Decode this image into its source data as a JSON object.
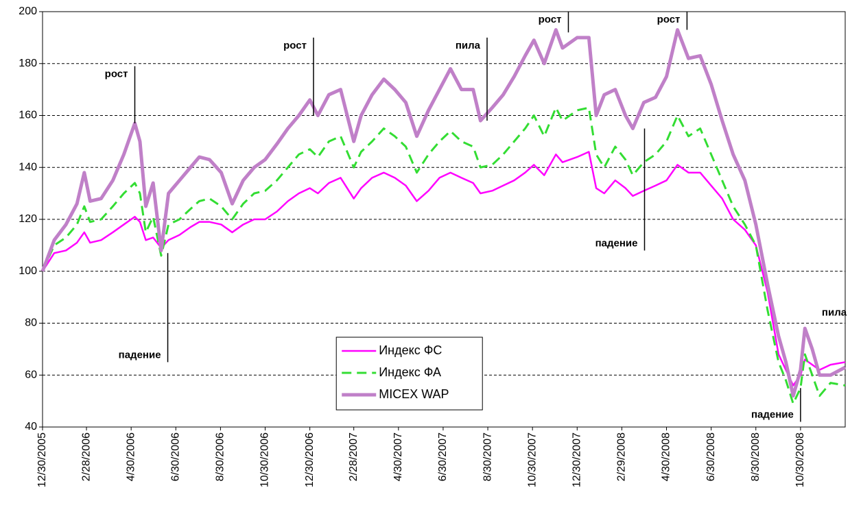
{
  "chart_data": {
    "type": "line",
    "x": [
      "12/30/2005",
      "1/15/2006",
      "1/31/2006",
      "2/15/2006",
      "2/25/2006",
      "3/5/2006",
      "3/20/2006",
      "4/5/2006",
      "4/20/2006",
      "5/5/2006",
      "5/12/2006",
      "5/20/2006",
      "5/30/2006",
      "6/10/2006",
      "6/20/2006",
      "7/5/2006",
      "7/20/2006",
      "8/1/2006",
      "8/15/2006",
      "8/31/2006",
      "9/15/2006",
      "9/30/2006",
      "10/15/2006",
      "10/30/2006",
      "11/15/2006",
      "11/30/2006",
      "12/15/2006",
      "12/30/2006",
      "1/10/2007",
      "1/25/2007",
      "2/10/2007",
      "2/28/2007",
      "3/10/2007",
      "3/25/2007",
      "4/10/2007",
      "4/25/2007",
      "5/10/2007",
      "5/25/2007",
      "6/10/2007",
      "6/25/2007",
      "7/10/2007",
      "7/25/2007",
      "8/10/2007",
      "8/20/2007",
      "9/5/2007",
      "9/20/2007",
      "10/5/2007",
      "10/20/2007",
      "11/1/2007",
      "11/15/2007",
      "12/1/2007",
      "12/10/2007",
      "12/30/2007",
      "1/15/2008",
      "1/25/2008",
      "2/5/2008",
      "2/20/2008",
      "3/5/2008",
      "3/15/2008",
      "3/30/2008",
      "4/15/2008",
      "4/30/2008",
      "5/15/2008",
      "5/30/2008",
      "6/15/2008",
      "6/30/2008",
      "7/15/2008",
      "7/30/2008",
      "8/15/2008",
      "8/30/2008",
      "9/15/2008",
      "9/30/2008",
      "10/10/2008",
      "10/20/2008",
      "10/30/2008",
      "11/5/2008",
      "11/15/2008",
      "11/25/2008",
      "12/10/2008",
      "12/30/2008"
    ],
    "series": [
      {
        "name": "Индекс ФС",
        "color": "#ff00ff",
        "dash": false,
        "width": 2.5,
        "values": [
          100,
          107,
          108,
          111,
          115,
          111,
          112,
          115,
          118,
          121,
          119,
          112,
          113,
          109,
          112,
          114,
          117,
          119,
          119,
          118,
          115,
          118,
          120,
          120,
          123,
          127,
          130,
          132,
          130,
          134,
          136,
          128,
          132,
          136,
          138,
          136,
          133,
          127,
          131,
          136,
          138,
          136,
          134,
          130,
          131,
          133,
          135,
          138,
          141,
          137,
          145,
          142,
          144,
          146,
          132,
          130,
          135,
          132,
          129,
          131,
          133,
          135,
          141,
          138,
          138,
          133,
          128,
          120,
          116,
          110,
          92,
          68,
          62,
          56,
          60,
          66,
          64,
          62,
          64,
          65
        ]
      },
      {
        "name": "Индекс ФА",
        "color": "#33dd33",
        "dash": true,
        "width": 3,
        "values": [
          100,
          110,
          113,
          118,
          125,
          119,
          120,
          125,
          130,
          134,
          130,
          115,
          121,
          106,
          118,
          120,
          124,
          127,
          128,
          125,
          120,
          126,
          130,
          131,
          135,
          140,
          145,
          147,
          144,
          150,
          152,
          140,
          146,
          150,
          155,
          152,
          148,
          138,
          145,
          150,
          154,
          150,
          148,
          140,
          141,
          145,
          150,
          155,
          160,
          152,
          163,
          158,
          162,
          163,
          145,
          140,
          148,
          143,
          137,
          142,
          145,
          150,
          160,
          152,
          155,
          145,
          135,
          125,
          118,
          110,
          85,
          65,
          58,
          49,
          55,
          68,
          60,
          52,
          57,
          56
        ]
      },
      {
        "name": "MICEX WAP",
        "color": "#c080c8",
        "dash": false,
        "width": 5,
        "values": [
          100,
          112,
          118,
          126,
          138,
          127,
          128,
          135,
          145,
          157,
          150,
          125,
          134,
          108,
          130,
          135,
          140,
          144,
          143,
          138,
          126,
          135,
          140,
          143,
          149,
          155,
          160,
          166,
          160,
          168,
          170,
          150,
          160,
          168,
          174,
          170,
          165,
          152,
          162,
          170,
          178,
          170,
          170,
          158,
          163,
          168,
          175,
          183,
          189,
          180,
          193,
          186,
          190,
          190,
          160,
          168,
          170,
          160,
          155,
          165,
          167,
          175,
          193,
          182,
          183,
          172,
          158,
          145,
          135,
          118,
          95,
          75,
          65,
          52,
          62,
          78,
          70,
          60,
          60,
          63
        ]
      }
    ],
    "xlim": [
      "12/30/2005",
      "12/30/2008"
    ],
    "xticks": [
      "12/30/2005",
      "2/28/2006",
      "4/30/2006",
      "6/30/2006",
      "8/30/2006",
      "10/30/2006",
      "12/30/2006",
      "2/28/2007",
      "4/30/2007",
      "6/30/2007",
      "8/30/2007",
      "10/30/2007",
      "12/30/2007",
      "2/29/2008",
      "4/30/2008",
      "6/30/2008",
      "8/30/2008",
      "10/30/2008"
    ],
    "ylim": [
      40,
      200
    ],
    "yticks": [
      40,
      60,
      80,
      100,
      120,
      140,
      160,
      180,
      200
    ],
    "grid": true,
    "legend": "lower center",
    "annotations": [
      {
        "text": "рост",
        "x": "5/5/2006",
        "y": [
          157,
          179
        ]
      },
      {
        "text": "падение",
        "x": "6/19/2006",
        "y": [
          107,
          65
        ]
      },
      {
        "text": "рост",
        "x": "1/4/2007",
        "y": [
          160,
          190
        ]
      },
      {
        "text": "пила",
        "x": "8/29/2007",
        "y": [
          158,
          190
        ]
      },
      {
        "text": "рост",
        "x": "12/18/2007",
        "y": [
          192,
          200
        ]
      },
      {
        "text": "падение",
        "x": "3/31/2008",
        "y": [
          155,
          108
        ]
      },
      {
        "text": "рост",
        "x": "5/28/2008",
        "y": [
          193,
          200
        ]
      },
      {
        "text": "пила",
        "x": "12/15/2008",
        "y": [
          84
        ]
      },
      {
        "text": "падение",
        "x": "10/30/2008",
        "y": [
          55,
          42
        ]
      }
    ]
  }
}
